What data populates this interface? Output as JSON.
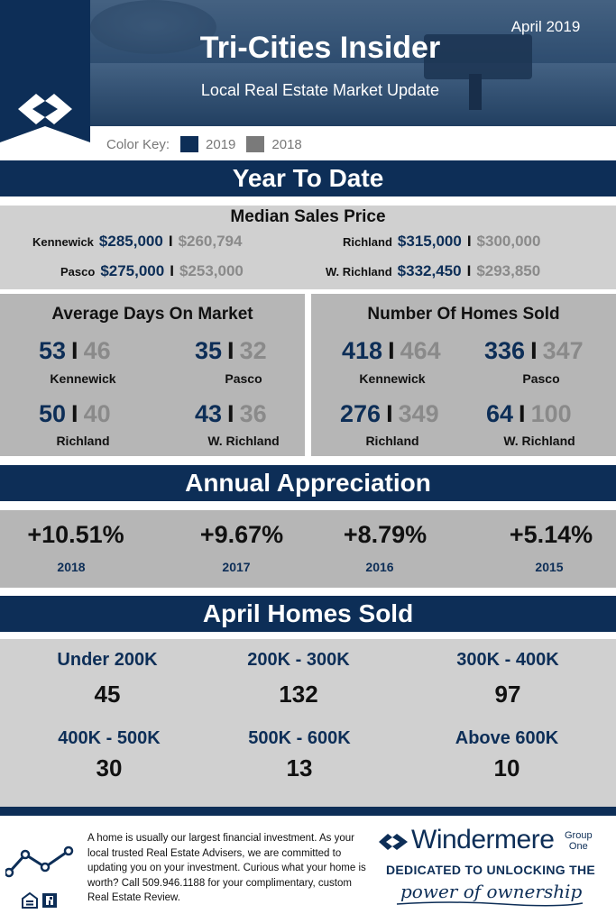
{
  "header": {
    "title": "Tri-Cities Insider",
    "subtitle": "Local Real Estate Market Update",
    "date": "April 2019"
  },
  "color_key": {
    "label": "Color Key:",
    "items": [
      {
        "label": "2019",
        "color": "#0d2e57"
      },
      {
        "label": "2018",
        "color": "#7a7a7a"
      }
    ]
  },
  "ytd": {
    "title": "Year To Date",
    "median": {
      "title": "Median Sales Price",
      "rows": [
        {
          "city": "Kennewick",
          "v2019": "$285,000",
          "v2018": "$260,794"
        },
        {
          "city": "Richland",
          "v2019": "$315,000",
          "v2018": "$300,000"
        },
        {
          "city": "Pasco",
          "v2019": "$275,000",
          "v2018": "$253,000"
        },
        {
          "city": "W. Richland",
          "v2019": "$332,450",
          "v2018": "$293,850"
        }
      ]
    },
    "days_on_market": {
      "title": "Average Days On Market",
      "items": [
        {
          "city": "Kennewick",
          "v2019": "53",
          "v2018": "46"
        },
        {
          "city": "Pasco",
          "v2019": "35",
          "v2018": "32"
        },
        {
          "city": "Richland",
          "v2019": "50",
          "v2018": "40"
        },
        {
          "city": "W. Richland",
          "v2019": "43",
          "v2018": "36"
        }
      ]
    },
    "homes_sold": {
      "title": "Number Of Homes Sold",
      "items": [
        {
          "city": "Kennewick",
          "v2019": "418",
          "v2018": "464"
        },
        {
          "city": "Pasco",
          "v2019": "336",
          "v2018": "347"
        },
        {
          "city": "Richland",
          "v2019": "276",
          "v2018": "349"
        },
        {
          "city": "W. Richland",
          "v2019": "64",
          "v2018": "100"
        }
      ]
    }
  },
  "appreciation": {
    "title": "Annual Appreciation",
    "items": [
      {
        "pct": "+10.51%",
        "year": "2018"
      },
      {
        "pct": "+9.67%",
        "year": "2017"
      },
      {
        "pct": "+8.79%",
        "year": "2016"
      },
      {
        "pct": "+5.14%",
        "year": "2015"
      }
    ]
  },
  "april_sold": {
    "title": "April Homes Sold",
    "items": [
      {
        "range": "Under 200K",
        "count": "45"
      },
      {
        "range": "200K - 300K",
        "count": "132"
      },
      {
        "range": "300K - 400K",
        "count": "97"
      },
      {
        "range": "400K - 500K",
        "count": "30"
      },
      {
        "range": "500K - 600K",
        "count": "13"
      },
      {
        "range": "Above 600K",
        "count": "10"
      }
    ]
  },
  "separator": "I",
  "footer": {
    "text": "A home is usually our largest financial investment. As your local trusted Real Estate Advisers, we are committed to updating you on your investment.  Curious what your home is worth? Call 509.946.1188 for your complimentary, custom Real Estate Review.",
    "brand": "Windermere",
    "brand_suffix_1": "Group",
    "brand_suffix_2": "One",
    "tagline_1": "DEDICATED TO UNLOCKING THE",
    "tagline_2": "power of ownership",
    "icons": [
      "line-chart-icon",
      "equal-housing-icon",
      "realtor-icon"
    ]
  }
}
